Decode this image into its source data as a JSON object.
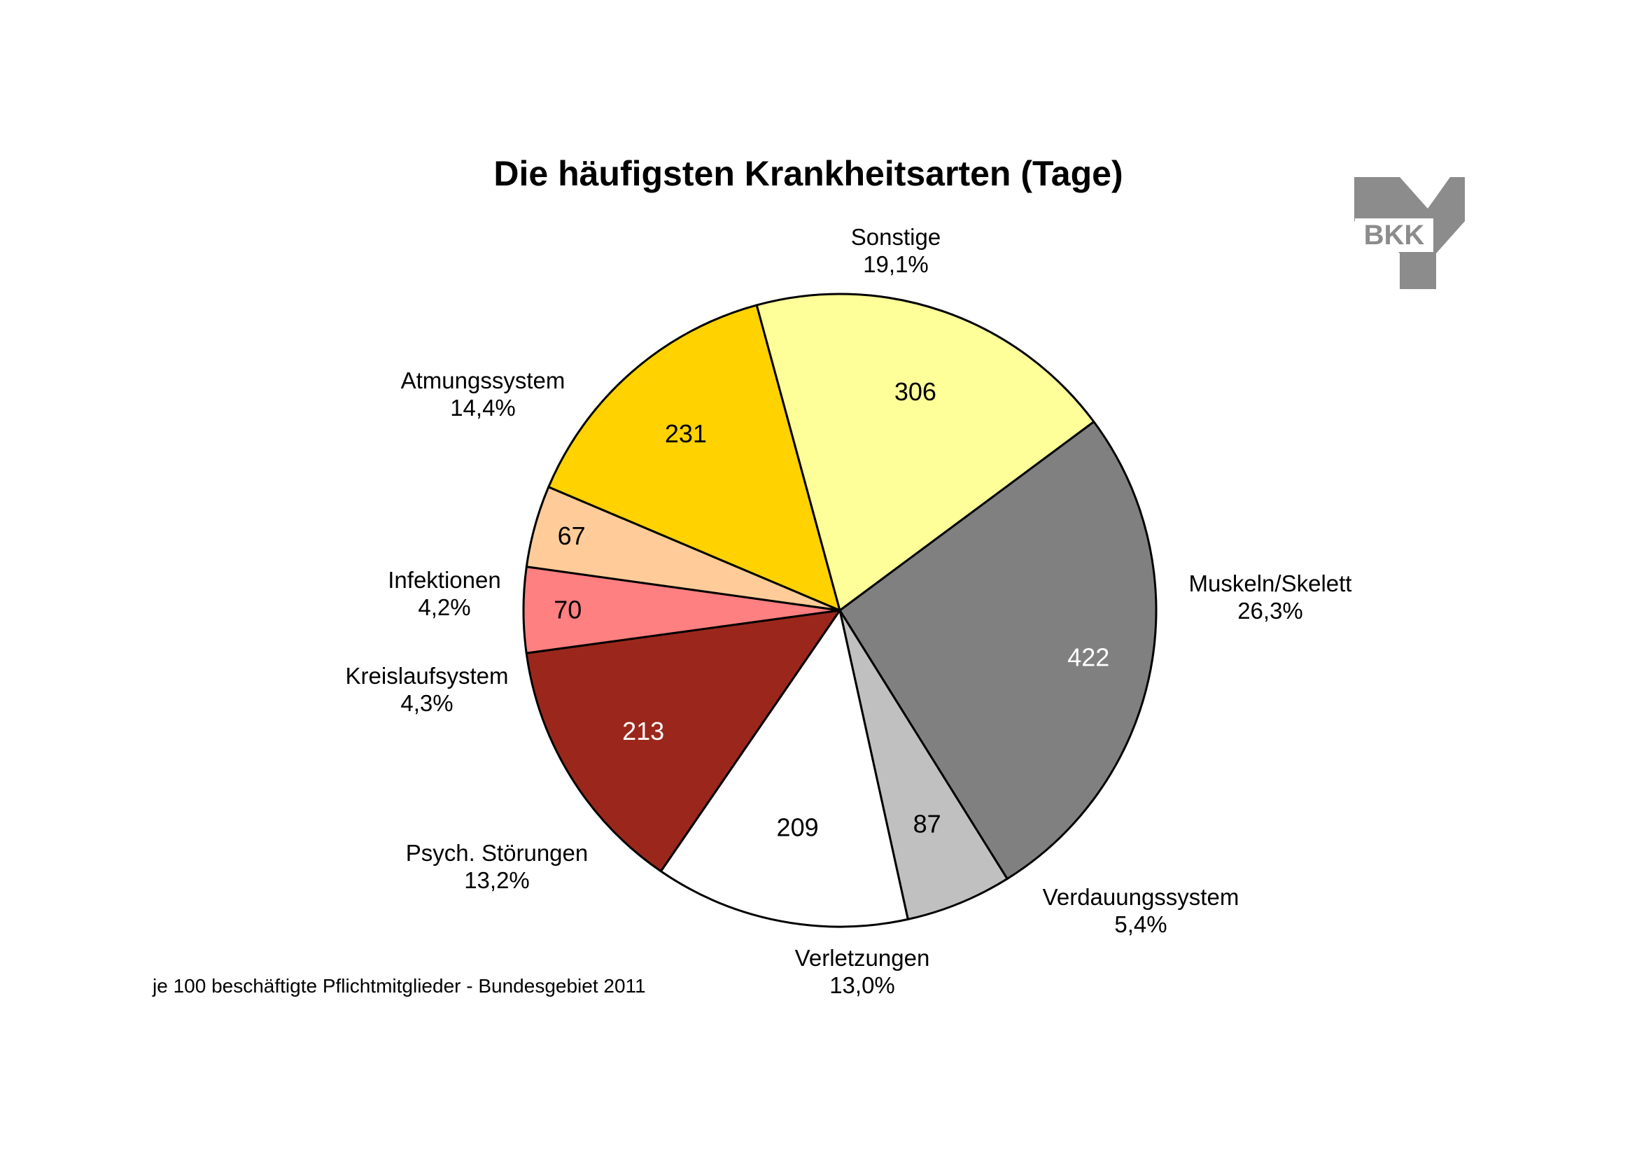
{
  "chart_data": {
    "type": "pie",
    "title": "Die häufigsten Krankheitsarten (Tage)",
    "footnote": "je 100 beschäftigte Pflichtmitglieder - Bundesgebiet 2011",
    "slices": [
      {
        "name": "Muskeln/Skelett",
        "value": 422,
        "percent": "26,3%",
        "color": "#808080",
        "value_color": "#ffffff"
      },
      {
        "name": "Verdauungssystem",
        "value": 87,
        "percent": "5,4%",
        "color": "#c0c0c0",
        "value_color": "#000000"
      },
      {
        "name": "Verletzungen",
        "value": 209,
        "percent": "13,0%",
        "color": "#ffffff",
        "value_color": "#000000"
      },
      {
        "name": "Psych. Störungen",
        "value": 213,
        "percent": "13,2%",
        "color": "#9b271c",
        "value_color": "#ffffff"
      },
      {
        "name": "Kreislaufsystem",
        "value": 70,
        "percent": "4,3%",
        "color": "#ff8080",
        "value_color": "#000000"
      },
      {
        "name": "Infektionen",
        "value": 67,
        "percent": "4,2%",
        "color": "#ffcc99",
        "value_color": "#000000"
      },
      {
        "name": "Atmungssystem",
        "value": 231,
        "percent": "14,4%",
        "color": "#ffd200",
        "value_color": "#000000"
      },
      {
        "name": "Sonstige",
        "value": 306,
        "percent": "19,1%",
        "color": "#ffff99",
        "value_color": "#000000"
      }
    ]
  },
  "logo": {
    "text": "BKK",
    "color": "#8c8c8c"
  }
}
